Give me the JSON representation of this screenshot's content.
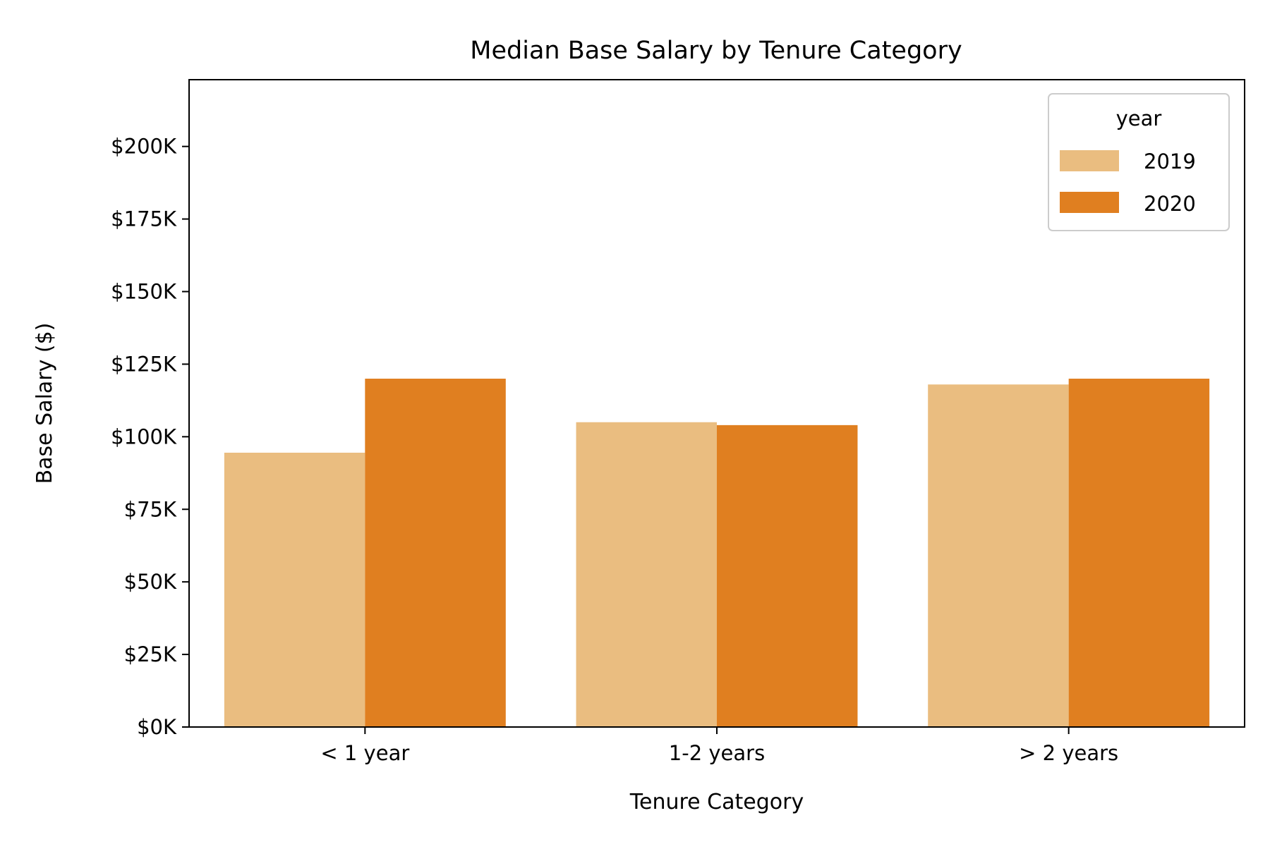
{
  "chart_data": {
    "type": "bar",
    "title": "Median Base Salary by Tenure Category",
    "xlabel": "Tenure Category",
    "ylabel": "Base Salary ($)",
    "categories": [
      "< 1 year",
      "1-2 years",
      "> 2 years"
    ],
    "series": [
      {
        "name": "2019",
        "values": [
          94500,
          105000,
          118000
        ],
        "color": "#eabd80"
      },
      {
        "name": "2020",
        "values": [
          120000,
          104000,
          120000
        ],
        "color": "#e07f20"
      }
    ],
    "ylim": [
      0,
      223000
    ],
    "yticks": [
      0,
      25000,
      50000,
      75000,
      100000,
      125000,
      150000,
      175000,
      200000
    ],
    "ytick_labels": [
      "$0K",
      "$25K",
      "$50K",
      "$75K",
      "$100K",
      "$125K",
      "$150K",
      "$175K",
      "$200K"
    ],
    "legend": {
      "title": "year",
      "position": "top-right"
    },
    "grid": false
  }
}
